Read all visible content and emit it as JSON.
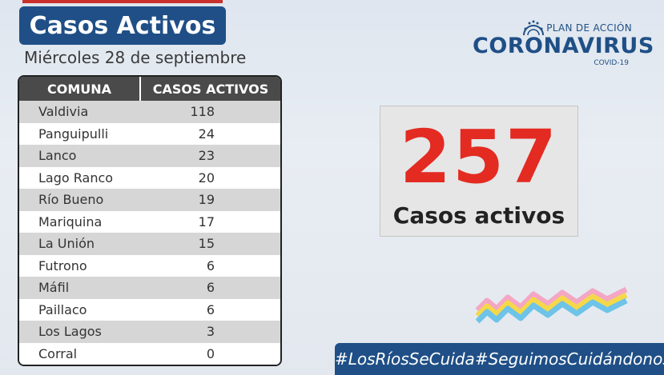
{
  "header": {
    "title": "Casos Activos",
    "date": "Miércoles 28 de septiembre"
  },
  "table": {
    "columns": [
      "COMUNA",
      "CASOS ACTIVOS"
    ],
    "rows": [
      {
        "comuna": "Valdivia",
        "casos": "118"
      },
      {
        "comuna": "Panguipulli",
        "casos": "24"
      },
      {
        "comuna": "Lanco",
        "casos": "23"
      },
      {
        "comuna": "Lago Ranco",
        "casos": "20"
      },
      {
        "comuna": "Río Bueno",
        "casos": "19"
      },
      {
        "comuna": "Mariquina",
        "casos": "17"
      },
      {
        "comuna": "La Unión",
        "casos": "15"
      },
      {
        "comuna": "Futrono",
        "casos": "6"
      },
      {
        "comuna": "Máfil",
        "casos": "6"
      },
      {
        "comuna": "Paillaco",
        "casos": "6"
      },
      {
        "comuna": "Los Lagos",
        "casos": "3"
      },
      {
        "comuna": "Corral",
        "casos": "0"
      }
    ]
  },
  "logo": {
    "plan": "PLAN DE ACCIÓN",
    "name": "CORONAVIRUS",
    "sub": "COVID-19"
  },
  "total": {
    "value": "257",
    "label": "Casos activos"
  },
  "hashtags": [
    "#LosRíosSeCuida",
    "#SeguimosCuidándonos"
  ],
  "colors": {
    "navy": "#1f4f86",
    "red": "#e32b22",
    "header_gray": "#4a4a4a"
  }
}
